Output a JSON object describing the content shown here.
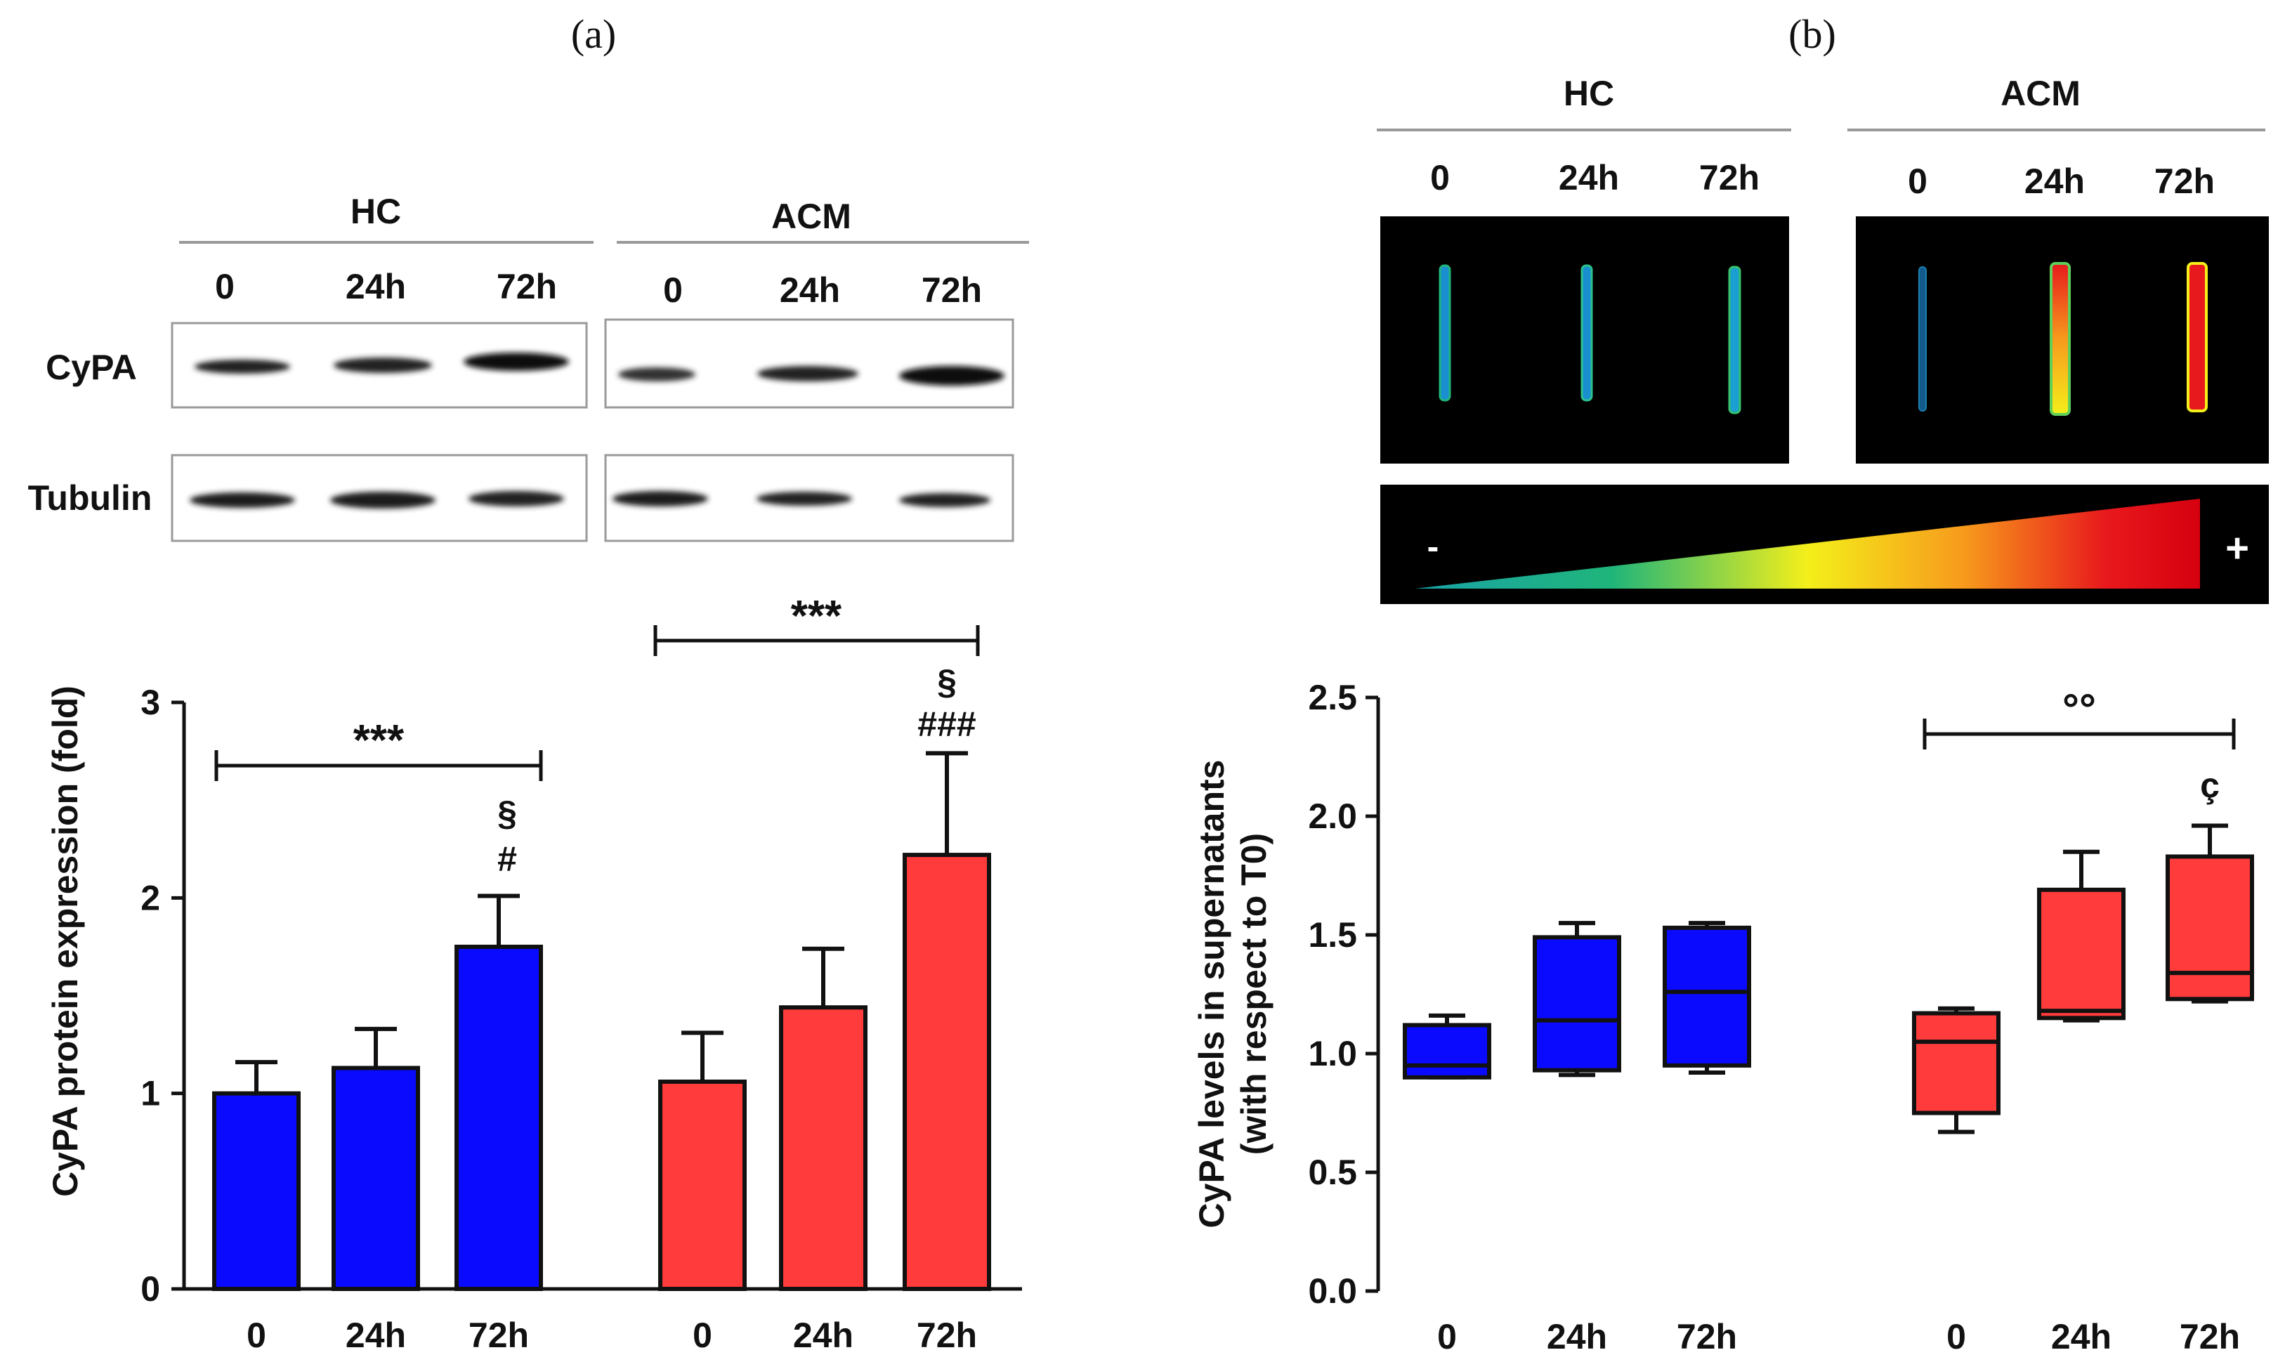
{
  "panels": {
    "a_label": "(a)",
    "b_label": "(b)"
  },
  "blot": {
    "hc_label": "HC",
    "acm_label": "ACM",
    "timepoints": [
      "0",
      "24h",
      "72h"
    ],
    "row_labels": [
      "CyPA",
      "Tubulin"
    ]
  },
  "heatmap": {
    "hc_label": "HC",
    "acm_label": "ACM",
    "timepoints": [
      "0",
      "24h",
      "72h"
    ],
    "scale_min": "-",
    "scale_max": "+",
    "colors": [
      "#1aa3a8",
      "#1fb57a",
      "#f4ef1a",
      "#f79a1c",
      "#e8191c",
      "#d6000f"
    ]
  },
  "chart_data": [
    {
      "type": "bar",
      "panel": "a",
      "ylabel": "CyPA protein expression (fold)",
      "ylim": [
        0,
        3
      ],
      "yticks": [
        "0",
        "1",
        "2",
        "3"
      ],
      "groups": [
        {
          "name": "HC",
          "color": "#0a0aff",
          "categories": [
            "0",
            "24h",
            "72h"
          ],
          "values": [
            1.0,
            1.13,
            1.75
          ],
          "errors": [
            0.16,
            0.2,
            0.26
          ]
        },
        {
          "name": "ACM",
          "color": "#ff3b3b",
          "categories": [
            "0",
            "24h",
            "72h"
          ],
          "values": [
            1.06,
            1.44,
            2.22
          ],
          "errors": [
            0.25,
            0.3,
            0.52
          ]
        }
      ],
      "annotations": {
        "hc_bracket": "***",
        "acm_bracket": "***",
        "hc_72h_marks": [
          "§",
          "#"
        ],
        "acm_72h_marks": [
          "§",
          "###"
        ]
      }
    },
    {
      "type": "box",
      "panel": "b",
      "ylabel_line1": "CyPA levels in supernatants",
      "ylabel_line2": "(with respect to T0)",
      "ylim": [
        0,
        2.5
      ],
      "yticks": [
        "0.0",
        "0.5",
        "1.0",
        "1.5",
        "2.0",
        "2.5"
      ],
      "groups": [
        {
          "name": "HC",
          "color": "#0a0aff",
          "categories": [
            "0",
            "24h",
            "72h"
          ],
          "boxes": [
            {
              "min": 0.9,
              "q1": 0.9,
              "median": 0.95,
              "q3": 1.12,
              "max": 1.16
            },
            {
              "min": 0.91,
              "q1": 0.93,
              "median": 1.14,
              "q3": 1.49,
              "max": 1.55
            },
            {
              "min": 0.92,
              "q1": 0.95,
              "median": 1.26,
              "q3": 1.53,
              "max": 1.55
            }
          ]
        },
        {
          "name": "ACM",
          "color": "#ff3b3b",
          "categories": [
            "0",
            "24h",
            "72h"
          ],
          "boxes": [
            {
              "min": 0.67,
              "q1": 0.75,
              "median": 1.05,
              "q3": 1.17,
              "max": 1.19
            },
            {
              "min": 1.14,
              "q1": 1.15,
              "median": 1.18,
              "q3": 1.69,
              "max": 1.85
            },
            {
              "min": 1.22,
              "q1": 1.23,
              "median": 1.34,
              "q3": 1.83,
              "max": 1.96
            }
          ]
        }
      ],
      "annotations": {
        "acm_bracket": "°°",
        "acm_72h_mark": "ç"
      }
    }
  ]
}
